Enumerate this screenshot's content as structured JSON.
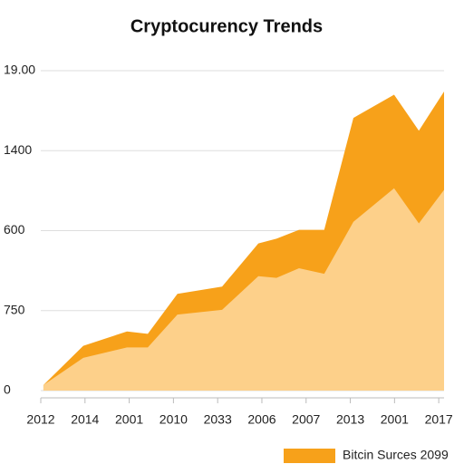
{
  "chart_data": {
    "type": "area",
    "title": "Cryptocurency Trends",
    "x": [
      0.06,
      0.96,
      1.95,
      2.42,
      3.09,
      4.1,
      4.92,
      5.33,
      5.84,
      6.41,
      7.07,
      7.99,
      8.55,
      9.12
    ],
    "xlim": [
      0,
      9.12
    ],
    "xticks": [
      {
        "value": 0,
        "label": "2012"
      },
      {
        "value": 1,
        "label": "2014"
      },
      {
        "value": 2,
        "label": "2001"
      },
      {
        "value": 3,
        "label": "2010"
      },
      {
        "value": 4,
        "label": "2033"
      },
      {
        "value": 5,
        "label": "2006"
      },
      {
        "value": 6,
        "label": "2007"
      },
      {
        "value": 7,
        "label": "2013"
      },
      {
        "value": 8,
        "label": "2001"
      },
      {
        "value": 9,
        "label": "2017"
      }
    ],
    "ylim": [
      0,
      4
    ],
    "yticks": [
      0,
      {
        "value": 1,
        "label": "750"
      },
      {
        "value": 2,
        "label": "600"
      },
      {
        "value": 3,
        "label": "1400"
      },
      {
        "value": 4,
        "label": "19.00"
      }
    ],
    "grid": true,
    "stacked": true,
    "series": [
      {
        "color": "#fdd08a",
        "values": [
          0.07,
          0.41,
          0.54,
          0.54,
          0.95,
          1.01,
          1.43,
          1.41,
          1.53,
          1.46,
          2.11,
          2.53,
          2.09,
          2.51
        ]
      },
      {
        "name": "Bitcin Surces 2099",
        "color": "#f7a11a",
        "values": [
          0,
          0.15,
          0.2,
          0.17,
          0.26,
          0.29,
          0.41,
          0.49,
          0.48,
          0.55,
          1.3,
          1.17,
          1.16,
          1.23
        ]
      }
    ],
    "legend": "bottom-right"
  }
}
